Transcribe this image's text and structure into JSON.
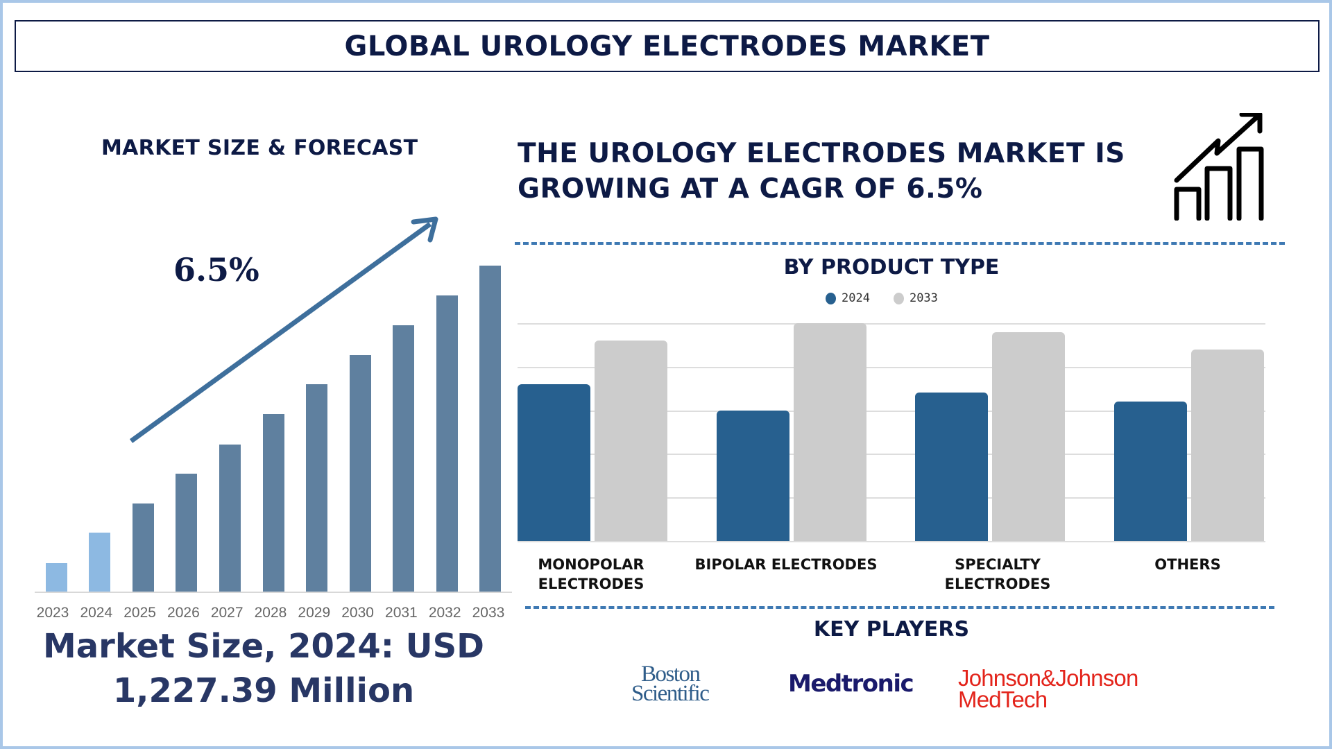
{
  "header": {
    "title": "GLOBAL UROLOGY ELECTRODES MARKET"
  },
  "left_panel": {
    "heading": "MARKET SIZE & FORECAST",
    "cagr_label": "6.5%",
    "market_size_line1": "Market Size, 2024: USD",
    "market_size_line2": "1,227.39 Million"
  },
  "right_panel": {
    "headline_line1": "THE UROLOGY ELECTRODES MARKET IS",
    "headline_line2": "GROWING AT A CAGR OF 6.5%",
    "icon": "growth-chart-icon",
    "by_product_title": "BY PRODUCT TYPE",
    "key_players_title": "KEY PLAYERS",
    "key_players": [
      {
        "line1": "Boston",
        "line2": "Scientific",
        "color": "#2f5d8a"
      },
      {
        "line1": "Medtronic",
        "line2": "",
        "color": "#1a1a6b"
      },
      {
        "line1": "Johnson&Johnson",
        "line2": "MedTech",
        "color": "#e3241b"
      }
    ]
  },
  "colors": {
    "navy_text": "#0d1a45",
    "historic_bar": "#8db9e2",
    "forecast_bar": "#5f809f",
    "arrow": "#3e6f9c",
    "bar_2024": "#27608f",
    "bar_2033": "#cccccc",
    "dash": "#3e79b3",
    "frame": "#a9c7e8"
  },
  "chart_data": [
    {
      "type": "bar",
      "title": "MARKET SIZE & FORECAST",
      "categories": [
        "2023",
        "2024",
        "2025",
        "2026",
        "2027",
        "2028",
        "2029",
        "2030",
        "2031",
        "2032",
        "2033"
      ],
      "values": [
        8.8,
        18.0,
        27.0,
        36.2,
        45.1,
        54.4,
        63.6,
        72.6,
        81.8,
        90.8,
        100
      ],
      "value_unit": "relative bar height (% of 2033, no axis values shown)",
      "annotation": "6.5%",
      "xlabel": "",
      "ylabel": "",
      "grid": false,
      "historic_years": [
        "2023",
        "2024"
      ],
      "forecast_years": [
        "2025",
        "2026",
        "2027",
        "2028",
        "2029",
        "2030",
        "2031",
        "2032",
        "2033"
      ]
    },
    {
      "type": "bar",
      "title": "BY PRODUCT TYPE",
      "categories": [
        "MONOPOLAR ELECTRODES",
        "BIPOLAR ELECTRODES",
        "SPECIALTY ELECTRODES",
        "OTHERS"
      ],
      "series": [
        {
          "name": "2024",
          "values": [
            72,
            60,
            68,
            64
          ]
        },
        {
          "name": "2033",
          "values": [
            92,
            100,
            96,
            88
          ]
        }
      ],
      "value_unit": "relative height (top gridline = 100, no axis labels shown)",
      "ylim": [
        0,
        100
      ],
      "gridlines": 6,
      "grid": true,
      "legend_position": "top",
      "xlabel": "",
      "ylabel": ""
    }
  ]
}
